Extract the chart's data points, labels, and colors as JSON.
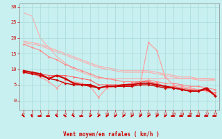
{
  "background_color": "#c8f0f0",
  "grid_color": "#a8d8d8",
  "text_color": "#cc0000",
  "xlabel": "Vent moyen/en rafales ( km/h )",
  "xlim": [
    -0.5,
    23.5
  ],
  "ylim": [
    -3,
    31
  ],
  "yticks": [
    0,
    5,
    10,
    15,
    20,
    25,
    30
  ],
  "xticks": [
    0,
    1,
    2,
    3,
    4,
    5,
    6,
    7,
    8,
    9,
    10,
    11,
    12,
    13,
    14,
    15,
    16,
    17,
    18,
    19,
    20,
    21,
    22,
    23
  ],
  "lines": [
    {
      "x": [
        0,
        1,
        2,
        3,
        4,
        5,
        6,
        7,
        8,
        9,
        10,
        11,
        12,
        13,
        14,
        15,
        16,
        17,
        18,
        19,
        20,
        21,
        22,
        23
      ],
      "y": [
        28,
        27,
        20,
        17,
        14,
        12,
        10,
        9,
        8,
        7,
        7,
        7,
        7,
        7,
        7,
        7,
        7,
        7,
        7,
        7,
        7,
        7,
        7,
        7
      ],
      "color": "#ffaaaa",
      "linewidth": 0.8,
      "marker": null,
      "markersize": 2,
      "zorder": 1
    },
    {
      "x": [
        0,
        1,
        2,
        3,
        4,
        5,
        6,
        7,
        8,
        9,
        10,
        11,
        12,
        13,
        14,
        15,
        16,
        17,
        18,
        19,
        20,
        21,
        22,
        23
      ],
      "y": [
        19,
        18.5,
        18,
        17,
        16,
        15,
        14,
        13,
        12,
        11,
        10.5,
        10,
        9.5,
        9.5,
        9.5,
        9.5,
        9,
        8.5,
        8,
        7.5,
        7.5,
        7,
        7,
        6.5
      ],
      "color": "#ffaaaa",
      "linewidth": 0.8,
      "marker": null,
      "markersize": 2,
      "zorder": 1
    },
    {
      "x": [
        0,
        1,
        2,
        3,
        4,
        5,
        6,
        7,
        8,
        9,
        10,
        11,
        12,
        13,
        14,
        15,
        16,
        17,
        18,
        19,
        20,
        21,
        22,
        23
      ],
      "y": [
        18.5,
        18,
        17.5,
        16.5,
        15.5,
        14.5,
        13.5,
        12.5,
        11.5,
        10.5,
        10,
        9.5,
        9,
        9,
        9,
        9,
        8.5,
        8,
        7.5,
        7,
        7,
        6.5,
        6.5,
        6.5
      ],
      "color": "#ffaaaa",
      "linewidth": 0.8,
      "marker": null,
      "markersize": 2,
      "zorder": 1
    },
    {
      "x": [
        0,
        1,
        2,
        3,
        4,
        5,
        6,
        7,
        8,
        9,
        10,
        11,
        12,
        13,
        14,
        15,
        16,
        17,
        18,
        19,
        20,
        21,
        22,
        23
      ],
      "y": [
        18,
        17,
        16,
        14,
        13,
        11.5,
        10.5,
        9.5,
        8.5,
        7.5,
        7,
        6.5,
        6,
        6,
        6,
        6.5,
        6,
        5.5,
        5.5,
        5,
        4.5,
        4.5,
        4,
        3.5
      ],
      "color": "#ff8888",
      "linewidth": 0.8,
      "marker": "D",
      "markersize": 1.5,
      "zorder": 2
    },
    {
      "x": [
        0,
        1,
        2,
        3,
        4,
        5,
        6,
        7,
        8,
        9,
        10,
        11,
        12,
        13,
        14,
        15,
        16,
        17,
        18,
        19,
        20,
        21,
        22,
        23
      ],
      "y": [
        9,
        9,
        8.5,
        8,
        8,
        8,
        7.5,
        7,
        6.5,
        5,
        5,
        5,
        5,
        5.5,
        6,
        6,
        5.5,
        4.5,
        4.5,
        4,
        3.5,
        3.5,
        3,
        2.5
      ],
      "color": "#ff6666",
      "linewidth": 0.8,
      "marker": "D",
      "markersize": 1.5,
      "zorder": 2
    },
    {
      "x": [
        0,
        1,
        2,
        3,
        4,
        5,
        6,
        7,
        8,
        9,
        10,
        11,
        12,
        13,
        14,
        15,
        16,
        17,
        18,
        19,
        20,
        21,
        22,
        23
      ],
      "y": [
        9,
        8.5,
        7.5,
        6,
        4,
        6.5,
        6,
        5.5,
        4.5,
        1,
        4,
        4.5,
        4.5,
        5,
        5,
        18.5,
        16,
        7.5,
        5,
        4.5,
        4,
        3.5,
        3,
        2
      ],
      "color": "#ff9999",
      "linewidth": 0.8,
      "marker": "D",
      "markersize": 1.5,
      "zorder": 2
    },
    {
      "x": [
        0,
        1,
        2,
        3,
        4,
        5,
        6,
        7,
        8,
        9,
        10,
        11,
        12,
        13,
        14,
        15,
        16,
        17,
        18,
        19,
        20,
        21,
        22,
        23
      ],
      "y": [
        9.5,
        9,
        8.5,
        7,
        8,
        7,
        5.5,
        5,
        5,
        4,
        4.5,
        4.5,
        5,
        5,
        5.5,
        5.5,
        5,
        4.5,
        4,
        3.5,
        3,
        3,
        4,
        1.5
      ],
      "color": "#cc0000",
      "linewidth": 1.5,
      "marker": "D",
      "markersize": 2,
      "zorder": 4
    },
    {
      "x": [
        0,
        1,
        2,
        3,
        4,
        5,
        6,
        7,
        8,
        9,
        10,
        11,
        12,
        13,
        14,
        15,
        16,
        17,
        18,
        19,
        20,
        21,
        22,
        23
      ],
      "y": [
        9,
        8.5,
        8,
        7,
        6.5,
        5.5,
        5,
        5,
        4.5,
        4,
        4.5,
        4.5,
        4.5,
        4.5,
        5,
        5,
        4.5,
        4,
        4,
        3.5,
        3,
        3,
        3.5,
        1.5
      ],
      "color": "#cc0000",
      "linewidth": 1.0,
      "marker": "D",
      "markersize": 1.8,
      "zorder": 3
    }
  ],
  "wind_dirs": [
    225,
    200,
    270,
    270,
    225,
    225,
    225,
    270,
    135,
    135,
    135,
    135,
    135,
    135,
    135,
    135,
    135,
    135,
    270,
    270,
    270,
    270,
    270,
    270
  ]
}
